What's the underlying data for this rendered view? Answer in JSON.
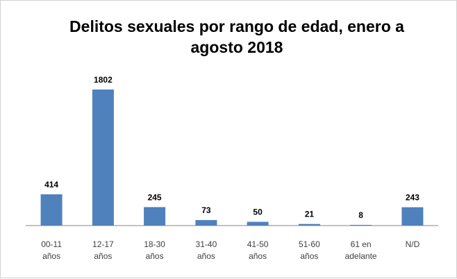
{
  "chart_data": {
    "type": "bar",
    "title": "Delitos sexuales por rango de edad, enero a agosto 2018",
    "categories": [
      [
        "00-11",
        "años"
      ],
      [
        "12-17",
        "años"
      ],
      [
        "18-30",
        "años"
      ],
      [
        "31-40",
        "años"
      ],
      [
        "41-50",
        "años"
      ],
      [
        "51-60",
        "años"
      ],
      [
        "61 en",
        "adelante"
      ],
      [
        "N/D"
      ]
    ],
    "values": [
      414,
      1802,
      245,
      73,
      50,
      21,
      8,
      243
    ],
    "xlabel": "",
    "ylabel": "",
    "ylim": [
      0,
      1802
    ],
    "grid": false,
    "legend": "none",
    "data_labels": true
  },
  "colors": {
    "bar": "#4f81bd",
    "axis": "#868686",
    "frame": "#d0d0d0",
    "title": "#000000",
    "category_text": "#404040"
  }
}
